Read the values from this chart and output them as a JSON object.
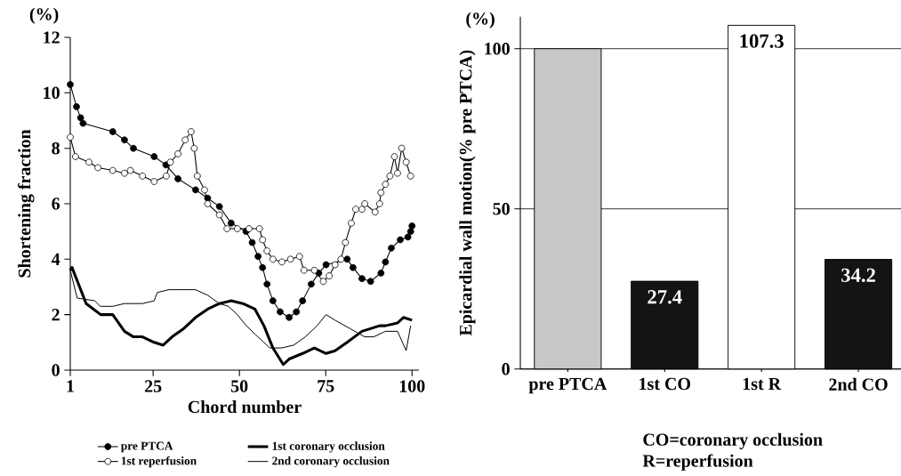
{
  "chart_data": [
    {
      "type": "line",
      "xlabel": "Chord number",
      "ylabel": "Shortening fraction",
      "annotations": [
        "(%)"
      ],
      "xlim": [
        1,
        102
      ],
      "xticks": [
        1,
        25,
        50,
        75,
        100
      ],
      "ylim": [
        0,
        12
      ],
      "yticks": [
        0,
        2,
        4,
        6,
        8,
        10,
        12
      ],
      "legend": "bottom",
      "grid": false,
      "series": [
        {
          "name": "pre PTCA",
          "color": "#000000",
          "marker": "circle",
          "x": [
            1,
            2.8,
            4,
            4.7,
            13.3,
            16.7,
            19.3,
            25.3,
            28.7,
            32.2,
            37.3,
            40.8,
            44.2,
            47.6,
            51.9,
            53.7,
            55.4,
            56.7,
            58,
            59.7,
            61.8,
            64.4,
            66.5,
            68.3,
            70.8,
            73,
            75.1,
            81.2,
            82.9,
            85.5,
            88,
            91,
            92.3,
            94,
            96.6,
            98.8,
            99.6,
            100
          ],
          "values": [
            10.3,
            9.5,
            9.1,
            8.9,
            8.6,
            8.3,
            8.0,
            7.7,
            7.4,
            6.9,
            6.5,
            6.2,
            5.9,
            5.3,
            5.0,
            4.6,
            4.1,
            3.7,
            3.1,
            2.5,
            2.1,
            1.9,
            2.1,
            2.5,
            3.1,
            3.5,
            3.8,
            4.0,
            3.7,
            3.3,
            3.2,
            3.5,
            3.9,
            4.4,
            4.7,
            4.8,
            5.0,
            5.2
          ]
        },
        {
          "name": "1st reperfusion",
          "color": "#000000",
          "marker": "circle",
          "x": [
            1,
            2.5,
            6.4,
            9,
            13.3,
            16.7,
            18.4,
            21.9,
            25.3,
            28.8,
            30,
            32.2,
            34.3,
            36,
            36.9,
            37.8,
            39.9,
            40.8,
            44.2,
            46.4,
            49.4,
            52.8,
            55.8,
            56.7,
            58,
            59.7,
            62.3,
            64.8,
            67.4,
            68.7,
            71.7,
            74.3,
            76,
            77.7,
            79.4,
            80.7,
            82.4,
            83.7,
            85.5,
            86.3,
            89.3,
            90.6,
            91,
            92.3,
            93.6,
            94.9,
            95.8,
            97,
            98.3,
            99.6
          ],
          "values": [
            8.4,
            7.7,
            7.5,
            7.3,
            7.2,
            7.1,
            7.2,
            7.0,
            6.8,
            7.0,
            7.5,
            7.8,
            8.3,
            8.6,
            8.0,
            7.0,
            6.5,
            6.0,
            5.6,
            5.1,
            5.1,
            5.1,
            5.1,
            4.7,
            4.3,
            4.0,
            3.9,
            4.0,
            4.1,
            3.6,
            3.6,
            3.2,
            3.4,
            3.8,
            4.0,
            4.6,
            5.3,
            5.8,
            5.8,
            6.0,
            5.7,
            6.0,
            6.4,
            6.7,
            7.0,
            7.7,
            7.1,
            8.0,
            7.5,
            7.0
          ]
        },
        {
          "name": "1st coronary occlusion",
          "color": "#000000",
          "marker": "none",
          "x": [
            1,
            1.5,
            5.6,
            9.8,
            13.3,
            16.7,
            19.3,
            21.9,
            25.3,
            27.9,
            30.5,
            33.9,
            37.3,
            40.8,
            44.2,
            47.6,
            51,
            54.5,
            57.1,
            59.7,
            62.7,
            64.4,
            68.3,
            71.7,
            75.1,
            77.7,
            81.2,
            85.5,
            90.6,
            92.3,
            95.8,
            97.5,
            100
          ],
          "values": [
            3.6,
            3.7,
            2.4,
            2.0,
            2.0,
            1.4,
            1.2,
            1.2,
            1.0,
            0.9,
            1.2,
            1.5,
            1.9,
            2.2,
            2.4,
            2.5,
            2.4,
            2.2,
            1.6,
            0.8,
            0.2,
            0.4,
            0.6,
            0.8,
            0.6,
            0.7,
            1.0,
            1.4,
            1.6,
            1.6,
            1.7,
            1.9,
            1.8
          ]
        },
        {
          "name": "2nd coronary occlusion",
          "color": "#000000",
          "marker": "none",
          "x": [
            1,
            3,
            8.1,
            9.7,
            13.3,
            16.7,
            21.9,
            25.3,
            26.2,
            29.6,
            33.9,
            37.3,
            40.8,
            44.2,
            46.8,
            49.4,
            52,
            54.5,
            57.1,
            58.8,
            62.3,
            65.7,
            69.1,
            72.5,
            75.1,
            77.7,
            82,
            86.3,
            88.9,
            92.3,
            95.8,
            98.3,
            99.6
          ],
          "values": [
            3.6,
            2.6,
            2.5,
            2.3,
            2.3,
            2.4,
            2.4,
            2.5,
            2.8,
            2.9,
            2.9,
            2.9,
            2.7,
            2.4,
            2.3,
            2.0,
            1.6,
            1.3,
            1.0,
            0.8,
            0.8,
            0.9,
            1.2,
            1.6,
            2.0,
            1.8,
            1.5,
            1.2,
            1.2,
            1.4,
            1.4,
            0.7,
            1.6
          ]
        }
      ]
    },
    {
      "type": "bar",
      "ylabel": "Epicardial wall motion(% pre PTCA)",
      "annotations": [
        "(%)",
        "CO=coronary occlusion",
        "R=reperfusion"
      ],
      "categories": [
        "pre PTCA",
        "1st CO",
        "1st R",
        "2nd CO"
      ],
      "values": [
        100,
        27.4,
        107.3,
        34.2
      ],
      "colors": [
        "#c8c8c8",
        "#141414",
        "#ffffff",
        "#141414"
      ],
      "value_labels": [
        null,
        "27.4",
        "107.3",
        "34.2"
      ],
      "ylim": [
        0,
        110
      ],
      "yticks": [
        0,
        50,
        100
      ],
      "grid": "y"
    }
  ]
}
